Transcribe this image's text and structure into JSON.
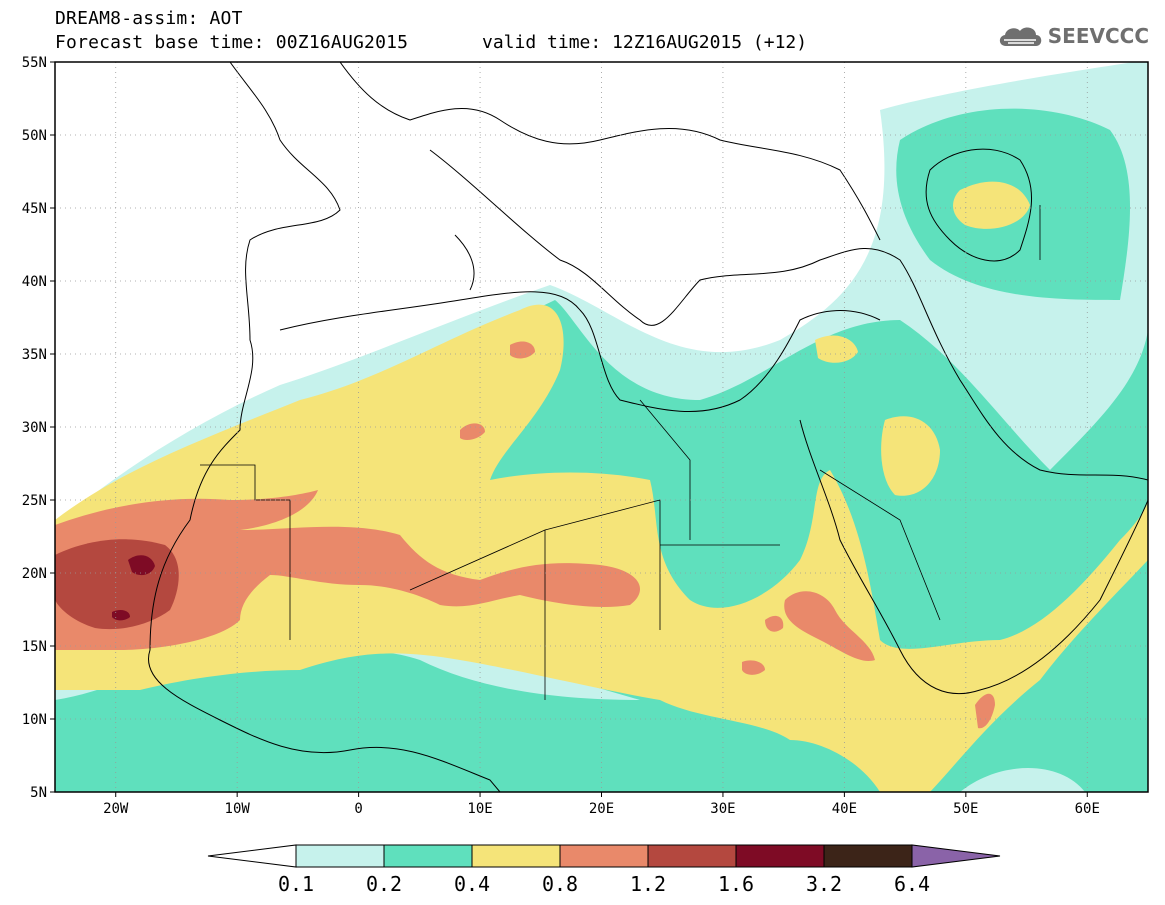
{
  "title": {
    "line1": "DREAM8-assim: AOT",
    "line2_base": "Forecast base time: 00Z16AUG2015",
    "line2_valid": "valid time: 12Z16AUG2015 (+12)"
  },
  "logo": {
    "text": "SEEVCCC",
    "icon": "cloud-icon"
  },
  "map": {
    "lat_range": [
      5,
      55
    ],
    "lon_range": [
      -25,
      65
    ],
    "lat_ticks": [
      "55N",
      "50N",
      "45N",
      "40N",
      "35N",
      "30N",
      "25N",
      "20N",
      "15N",
      "10N",
      "5N"
    ],
    "lon_ticks": [
      "20W",
      "10W",
      "0",
      "10E",
      "20E",
      "30E",
      "40E",
      "50E",
      "60E"
    ],
    "grid": "dotted"
  },
  "colorbar": {
    "labels": [
      "0.1",
      "0.2",
      "0.4",
      "0.8",
      "1.2",
      "1.6",
      "3.2",
      "6.4"
    ],
    "colors": [
      "#ffffff",
      "#c6f2ec",
      "#5fe0bd",
      "#f5e479",
      "#e9896a",
      "#b4483f",
      "#7e0b25",
      "#3c2418",
      "#8a63a8"
    ]
  }
}
